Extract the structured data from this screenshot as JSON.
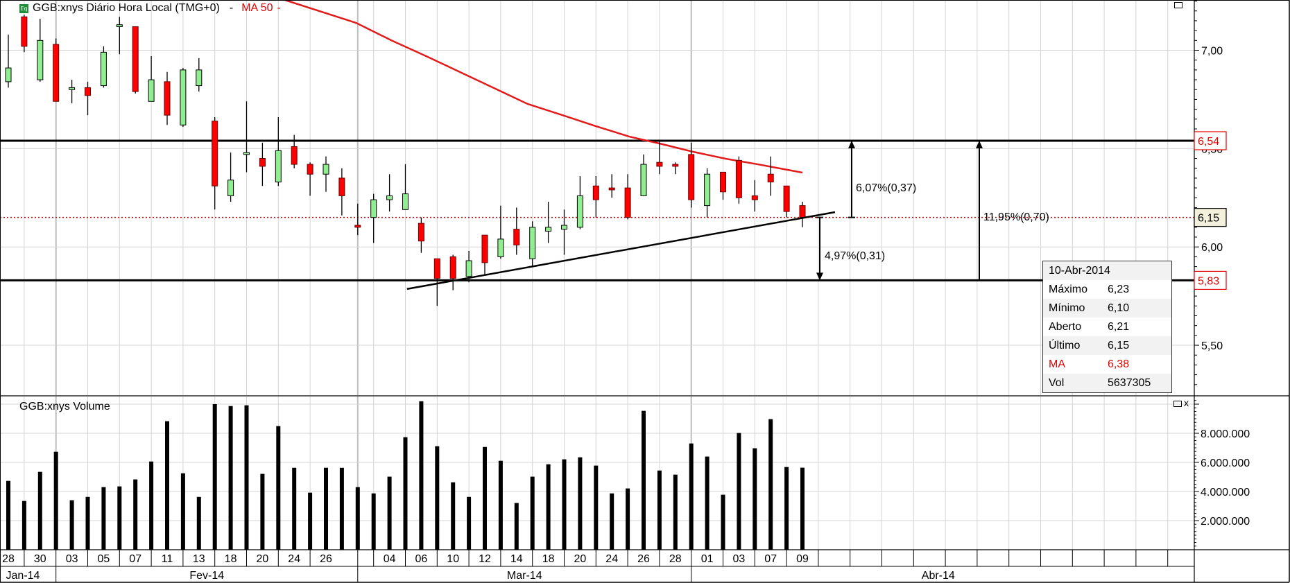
{
  "header": {
    "icon_text": "Eq",
    "title": "GGB:xnys Diário Hora Local (TMG+0)",
    "title_dropdown": "-",
    "indicator": "MA 50",
    "indicator_dropdown": "-"
  },
  "volume_pane": {
    "title": "GGB:xnys Volume",
    "close_label": "x"
  },
  "colors": {
    "up": "#90ee90",
    "down": "#ff0000",
    "ma": "#e31a1a",
    "last_price_line": "#cc0000",
    "grid": "#d4d4d4"
  },
  "info_box": {
    "date": "10-Abr-2014",
    "rows": [
      {
        "label": "Máximo",
        "value": "6,23"
      },
      {
        "label": "Mínimo",
        "value": "6,10"
      },
      {
        "label": "Aberto",
        "value": "6,21"
      },
      {
        "label": "Último",
        "value": "6,15"
      },
      {
        "label": "MA",
        "value": "6,38"
      },
      {
        "label": "Vol",
        "value": "5637305"
      }
    ]
  },
  "annotations": {
    "upper_level": {
      "price": 6.54,
      "label": "6,54"
    },
    "lower_level": {
      "price": 5.83,
      "label": "5,83"
    },
    "last_price": {
      "price": 6.15,
      "label": "6,15"
    },
    "measure_up": "6,07%(0,37)",
    "measure_down": "4,97%(0,31)",
    "measure_range": "11,95%(0,70)",
    "trendline": [
      [
        25.1,
        5.786
      ],
      [
        52.05,
        6.177
      ]
    ]
  },
  "chart_data": {
    "type": "candlestick",
    "title": "GGB:xnys Diário Hora Local (TMG+0)",
    "price_axis": {
      "ylim": [
        5.3,
        7.255
      ],
      "tick_labels": [
        {
          "v": 7.0,
          "t": "7,00"
        },
        {
          "v": 6.5,
          "t": "6,50"
        },
        {
          "v": 6.0,
          "t": "6,00"
        },
        {
          "v": 5.5,
          "t": "5,50"
        }
      ]
    },
    "volume_axis": {
      "ylim": [
        0,
        10480000
      ],
      "tick_labels": [
        {
          "v": 8000000,
          "t": "8.000.000"
        },
        {
          "v": 6000000,
          "t": "6.000.000"
        },
        {
          "v": 4000000,
          "t": "4.000.000"
        },
        {
          "v": 2000000,
          "t": "2.000.000"
        }
      ]
    },
    "x_tick_labels": [
      {
        "bar": 0,
        "t": "28"
      },
      {
        "bar": 2,
        "t": "30"
      },
      {
        "bar": 4,
        "t": "03"
      },
      {
        "bar": 6,
        "t": "05"
      },
      {
        "bar": 8,
        "t": "07"
      },
      {
        "bar": 10,
        "t": "11"
      },
      {
        "bar": 12,
        "t": "13"
      },
      {
        "bar": 14,
        "t": "18"
      },
      {
        "bar": 16,
        "t": "20"
      },
      {
        "bar": 18,
        "t": "24"
      },
      {
        "bar": 20,
        "t": "26"
      },
      {
        "bar": 24,
        "t": "04"
      },
      {
        "bar": 26,
        "t": "06"
      },
      {
        "bar": 28,
        "t": "10"
      },
      {
        "bar": 30,
        "t": "12"
      },
      {
        "bar": 32,
        "t": "14"
      },
      {
        "bar": 34,
        "t": "18"
      },
      {
        "bar": 36,
        "t": "20"
      },
      {
        "bar": 38,
        "t": "24"
      },
      {
        "bar": 40,
        "t": "26"
      },
      {
        "bar": 42,
        "t": "28"
      },
      {
        "bar": 44,
        "t": "01"
      },
      {
        "bar": 46,
        "t": "03"
      },
      {
        "bar": 48,
        "t": "07"
      },
      {
        "bar": 50,
        "t": "09"
      }
    ],
    "months": [
      {
        "from": -0.5,
        "to": 3,
        "t": "Jan-14"
      },
      {
        "from": 3,
        "to": 22,
        "t": "Fev-14"
      },
      {
        "from": 22,
        "to": 43,
        "t": "Mar-14"
      },
      {
        "from": 43,
        "to": 74.1,
        "t": "Abr-14"
      }
    ],
    "ohlc": [
      [
        6.84,
        7.08,
        6.81,
        6.91
      ],
      [
        7.17,
        7.18,
        6.99,
        7.02
      ],
      [
        6.85,
        7.16,
        6.84,
        7.05
      ],
      [
        7.03,
        7.06,
        6.74,
        6.74
      ],
      [
        6.8,
        6.85,
        6.73,
        6.81
      ],
      [
        6.81,
        6.84,
        6.67,
        6.77
      ],
      [
        6.82,
        7.02,
        6.81,
        6.99
      ],
      [
        7.12,
        7.17,
        6.98,
        7.13
      ],
      [
        7.12,
        7.12,
        6.78,
        6.79
      ],
      [
        6.74,
        6.97,
        6.74,
        6.85
      ],
      [
        6.84,
        6.89,
        6.62,
        6.67
      ],
      [
        6.62,
        6.91,
        6.61,
        6.9
      ],
      [
        6.82,
        6.96,
        6.79,
        6.9
      ],
      [
        6.64,
        6.66,
        6.19,
        6.31
      ],
      [
        6.26,
        6.48,
        6.23,
        6.34
      ],
      [
        6.47,
        6.74,
        6.38,
        6.48
      ],
      [
        6.45,
        6.53,
        6.31,
        6.41
      ],
      [
        6.33,
        6.66,
        6.31,
        6.49
      ],
      [
        6.51,
        6.57,
        6.4,
        6.42
      ],
      [
        6.42,
        6.43,
        6.26,
        6.37
      ],
      [
        6.37,
        6.46,
        6.28,
        6.42
      ],
      [
        6.35,
        6.4,
        6.16,
        6.26
      ],
      [
        6.11,
        6.22,
        6.06,
        6.1
      ],
      [
        6.15,
        6.27,
        6.02,
        6.24
      ],
      [
        6.24,
        6.37,
        6.18,
        6.26
      ],
      [
        6.19,
        6.42,
        6.19,
        6.27
      ],
      [
        6.12,
        6.15,
        5.97,
        6.03
      ],
      [
        5.94,
        5.94,
        5.7,
        5.84
      ],
      [
        5.95,
        5.96,
        5.78,
        5.84
      ],
      [
        5.85,
        5.98,
        5.82,
        5.93
      ],
      [
        6.06,
        6.06,
        5.86,
        5.92
      ],
      [
        5.95,
        6.21,
        5.94,
        6.04
      ],
      [
        6.09,
        6.2,
        5.96,
        6.01
      ],
      [
        5.94,
        6.13,
        5.9,
        6.1
      ],
      [
        6.08,
        6.23,
        6.02,
        6.1
      ],
      [
        6.09,
        6.19,
        5.96,
        6.11
      ],
      [
        6.1,
        6.36,
        6.09,
        6.26
      ],
      [
        6.31,
        6.36,
        6.15,
        6.24
      ],
      [
        6.3,
        6.37,
        6.25,
        6.29
      ],
      [
        6.3,
        6.37,
        6.14,
        6.15
      ],
      [
        6.26,
        6.47,
        6.26,
        6.42
      ],
      [
        6.43,
        6.54,
        6.37,
        6.41
      ],
      [
        6.42,
        6.43,
        6.37,
        6.41
      ],
      [
        6.47,
        6.53,
        6.2,
        6.24
      ],
      [
        6.21,
        6.4,
        6.15,
        6.37
      ],
      [
        6.38,
        6.38,
        6.24,
        6.28
      ],
      [
        6.44,
        6.46,
        6.22,
        6.25
      ],
      [
        6.26,
        6.34,
        6.18,
        6.24
      ],
      [
        6.37,
        6.46,
        6.26,
        6.33
      ],
      [
        6.31,
        6.31,
        6.15,
        6.18
      ],
      [
        6.21,
        6.23,
        6.1,
        6.15
      ]
    ],
    "volume": [
      4730000,
      3350000,
      5350000,
      6730000,
      3400000,
      3630000,
      4300000,
      4350000,
      4830000,
      6060000,
      8830000,
      5250000,
      3630000,
      10000000,
      9870000,
      9920000,
      5210000,
      8490000,
      5630000,
      3920000,
      5630000,
      5630000,
      4300000,
      3870000,
      5020000,
      7730000,
      10200000,
      7110000,
      4630000,
      3630000,
      7060000,
      6110000,
      3210000,
      5020000,
      5870000,
      6210000,
      6350000,
      5780000,
      3870000,
      4210000,
      9540000,
      5440000,
      5160000,
      7300000,
      6400000,
      3780000,
      8020000,
      6970000,
      8970000,
      5680000,
      5637305
    ],
    "ma50": [
      [
        17.4,
        7.256
      ],
      [
        21.9,
        7.139
      ],
      [
        24.1,
        7.051
      ],
      [
        26.5,
        6.963
      ],
      [
        29.0,
        6.868
      ],
      [
        32.7,
        6.727
      ],
      [
        35.0,
        6.667
      ],
      [
        37.0,
        6.614
      ],
      [
        39.1,
        6.561
      ],
      [
        41.0,
        6.526
      ],
      [
        43.1,
        6.484
      ],
      [
        45.2,
        6.448
      ],
      [
        47.2,
        6.42
      ],
      [
        50.0,
        6.378
      ]
    ]
  }
}
